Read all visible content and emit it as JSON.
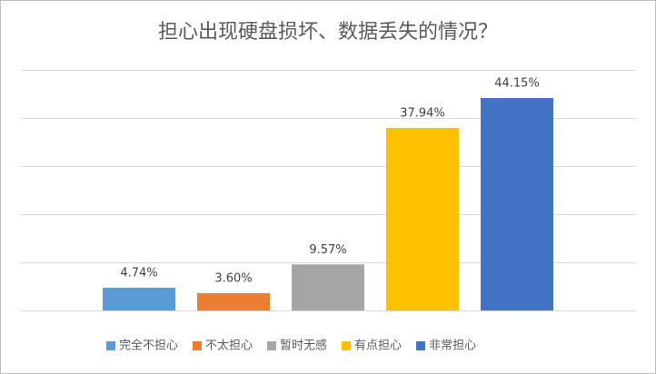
{
  "chart_data": {
    "type": "bar",
    "title": "担心出现硬盘损坏、数据丢失的情况？",
    "categories": [
      "完全不担心",
      "不太担心",
      "暂时无感",
      "有点担心",
      "非常担心"
    ],
    "values": [
      4.74,
      3.6,
      9.57,
      37.94,
      44.15
    ],
    "value_labels": [
      "4.74%",
      "3.60%",
      "9.57%",
      "37.94%",
      "44.15%"
    ],
    "colors": [
      "#5b9bd5",
      "#ed7d31",
      "#a5a5a5",
      "#ffc000",
      "#4472c4"
    ],
    "ylim": [
      0,
      50
    ],
    "yticks": [
      0,
      10,
      20,
      30,
      40,
      50
    ],
    "grid": true,
    "legend": "bottom"
  }
}
